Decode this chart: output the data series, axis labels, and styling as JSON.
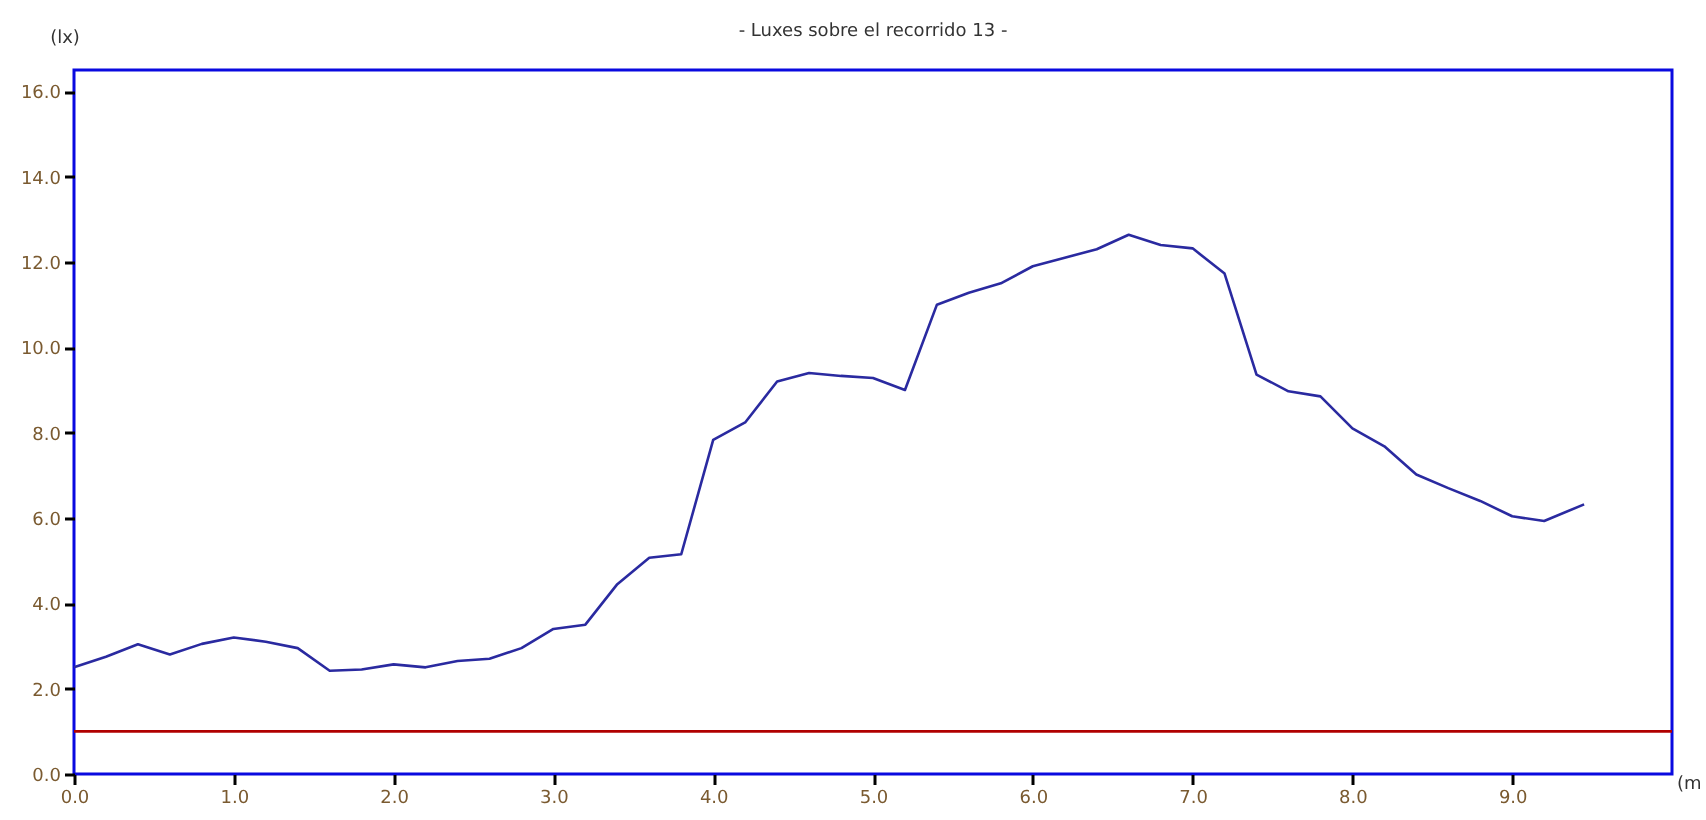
{
  "chart_data": {
    "type": "line",
    "title": "- Luxes sobre el recorrido 13 -",
    "xlabel": "(m",
    "ylabel": "(lx)",
    "x": [
      0.0,
      0.2,
      0.4,
      0.6,
      0.8,
      1.0,
      1.2,
      1.4,
      1.6,
      1.8,
      2.0,
      2.2,
      2.4,
      2.6,
      2.8,
      3.0,
      3.2,
      3.4,
      3.6,
      3.8,
      4.0,
      4.2,
      4.4,
      4.6,
      4.8,
      5.0,
      5.2,
      5.4,
      5.6,
      5.8,
      6.0,
      6.2,
      6.4,
      6.6,
      6.8,
      7.0,
      7.2,
      7.4,
      7.6,
      7.8,
      8.0,
      8.2,
      8.4,
      8.6,
      8.8,
      9.0,
      9.2,
      9.45
    ],
    "series": [
      {
        "color": "#2a2aa0",
        "values": [
          2.5,
          2.75,
          3.04,
          2.8,
          3.05,
          3.2,
          3.1,
          2.95,
          2.42,
          2.45,
          2.57,
          2.5,
          2.65,
          2.7,
          2.95,
          3.4,
          3.5,
          4.45,
          5.07,
          5.15,
          7.83,
          8.24,
          9.2,
          9.4,
          9.33,
          9.28,
          9.0,
          11.0,
          11.28,
          11.5,
          11.9,
          12.1,
          12.3,
          12.64,
          12.4,
          12.32,
          11.73,
          9.36,
          8.97,
          8.85,
          8.1,
          7.68,
          7.02,
          6.7,
          6.4,
          6.04,
          5.93,
          6.32
        ]
      }
    ],
    "xlim": [
      0,
      10
    ],
    "xticks": [
      {
        "value": 0,
        "label": "0.0"
      },
      {
        "value": 1,
        "label": "1.0"
      },
      {
        "value": 2,
        "label": "2.0"
      },
      {
        "value": 3,
        "label": "3.0"
      },
      {
        "value": 4,
        "label": "4.0"
      },
      {
        "value": 5,
        "label": "5.0"
      },
      {
        "value": 6,
        "label": "6.0"
      },
      {
        "value": 7,
        "label": "7.0"
      },
      {
        "value": 8,
        "label": "8.0"
      },
      {
        "value": 9,
        "label": "9.0"
      }
    ],
    "ylim": [
      0,
      16.5
    ],
    "yticks": [
      {
        "value": 0,
        "label": "0.0"
      },
      {
        "value": 2,
        "label": "2.0"
      },
      {
        "value": 4,
        "label": "4.0"
      },
      {
        "value": 6,
        "label": "6.0"
      },
      {
        "value": 8,
        "label": "8.0"
      },
      {
        "value": 10,
        "label": "10.0"
      },
      {
        "value": 12,
        "label": "12.0"
      },
      {
        "value": 14,
        "label": "14.0"
      },
      {
        "value": 16,
        "label": "16.0"
      }
    ],
    "ref_lines": [
      {
        "axis": "y",
        "value": 1.0,
        "color": "#b00000"
      }
    ],
    "grid": false,
    "legend": false,
    "marker": "none",
    "line_style": "solid"
  }
}
